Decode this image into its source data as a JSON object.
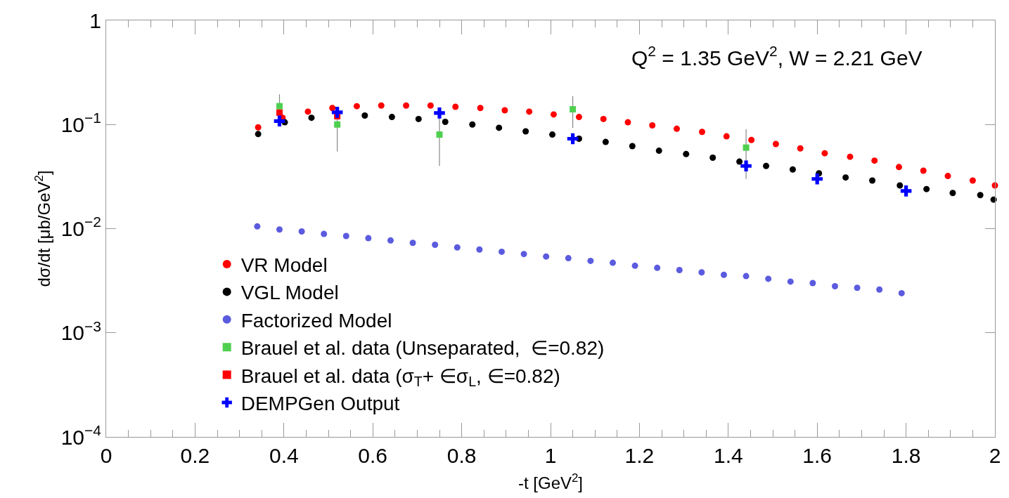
{
  "chart_data": {
    "type": "scatter",
    "xlabel": "-t [GeV$^{2}$]",
    "ylabel": "dσ/dt [μb/GeV$^{2}$]",
    "annotations": [
      "Q$^{2}$ = 1.35 GeV$^{2}$, W = 2.21 GeV"
    ],
    "log": "y",
    "legend": "bottom left",
    "xlim": [
      0,
      2
    ],
    "xticks": [
      0,
      0.2,
      0.4,
      0.6,
      0.8,
      1,
      1.2,
      1.4,
      1.6,
      1.8,
      2
    ],
    "ylim": [
      0.0001,
      1
    ],
    "yticks": [
      {
        "value": 0.0001,
        "label": "10$^{−4}$"
      },
      {
        "value": 0.001,
        "label": "10$^{−3}$"
      },
      {
        "value": 0.01,
        "label": "10$^{−2}$"
      },
      {
        "value": 0.1,
        "label": "10$^{−1}$"
      },
      1
    ],
    "series": [
      {
        "name": "VR Model",
        "color": "#ff0000",
        "marker": "circle",
        "x": [
          0.342,
          0.397,
          0.454,
          0.509,
          0.564,
          0.619,
          0.675,
          0.73,
          0.786,
          0.842,
          0.897,
          0.952,
          1.007,
          1.064,
          1.119,
          1.174,
          1.229,
          1.284,
          1.341,
          1.396,
          1.452,
          1.507,
          1.562,
          1.617,
          1.674,
          1.729,
          1.784,
          1.839,
          1.894,
          1.95,
          2.0
        ],
        "values": [
          0.094,
          0.116,
          0.133,
          0.144,
          0.15,
          0.152,
          0.152,
          0.152,
          0.148,
          0.144,
          0.137,
          0.133,
          0.125,
          0.118,
          0.113,
          0.105,
          0.098,
          0.091,
          0.085,
          0.077,
          0.071,
          0.065,
          0.059,
          0.053,
          0.049,
          0.045,
          0.039,
          0.036,
          0.032,
          0.029,
          0.026
        ]
      },
      {
        "name": "VGL Model",
        "color": "#000000",
        "marker": "circle",
        "x": [
          0.342,
          0.402,
          0.462,
          0.522,
          0.582,
          0.643,
          0.703,
          0.763,
          0.824,
          0.884,
          0.944,
          1.004,
          1.064,
          1.124,
          1.184,
          1.244,
          1.305,
          1.365,
          1.425,
          1.485,
          1.545,
          1.604,
          1.664,
          1.724,
          1.786,
          1.846,
          1.905,
          1.967,
          1.997
        ],
        "values": [
          0.081,
          0.105,
          0.116,
          null,
          0.122,
          0.118,
          0.113,
          0.106,
          0.1,
          0.093,
          0.086,
          0.08,
          0.073,
          0.068,
          0.062,
          0.056,
          0.052,
          0.048,
          0.044,
          0.04,
          0.037,
          0.034,
          0.031,
          0.029,
          0.026,
          0.024,
          0.022,
          0.021,
          0.019
        ]
      },
      {
        "name": "Factorized Model",
        "color": "#5b5bdf",
        "marker": "circle",
        "x": [
          0.34,
          0.39,
          0.44,
          0.49,
          0.54,
          0.59,
          0.64,
          0.69,
          0.74,
          0.79,
          0.84,
          0.89,
          0.94,
          0.99,
          1.04,
          1.09,
          1.14,
          1.19,
          1.24,
          1.29,
          1.34,
          1.39,
          1.44,
          1.49,
          1.54,
          1.59,
          1.64,
          1.69,
          1.74,
          1.79
        ],
        "values": [
          0.0105,
          0.0098,
          0.0094,
          0.0089,
          0.0085,
          0.0081,
          0.0077,
          0.0073,
          0.007,
          0.0066,
          0.0063,
          0.006,
          0.0057,
          0.0054,
          0.0052,
          0.0049,
          0.0047,
          0.0044,
          0.0042,
          0.004,
          0.0038,
          0.0036,
          0.0035,
          0.0033,
          0.0031,
          0.003,
          0.0028,
          0.0027,
          0.0026,
          0.0024
        ]
      },
      {
        "name": "Brauel et al. data (Unseparated,  ∈=0.82)",
        "color": "#4fcf4f",
        "marker": "square",
        "x": [
          0.39,
          0.52,
          0.75,
          1.05,
          1.44
        ],
        "values": [
          0.15,
          0.1,
          0.08,
          0.14,
          0.06
        ],
        "errors": [
          0.045,
          0.045,
          0.04,
          0.047,
          0.03
        ]
      },
      {
        "name": "Brauel et al. data (σ$_{T}$+ ∈σ$_{L}$, ∈=0.82)",
        "color": "#ff0000",
        "marker": "square",
        "x": [
          0.39,
          0.52
        ],
        "values": [
          0.13,
          0.12
        ]
      },
      {
        "name": "DEMPGen Output",
        "color": "#0000ff",
        "marker": "cross",
        "x": [
          0.39,
          0.52,
          0.75,
          1.05,
          1.44,
          1.6,
          1.8
        ],
        "values": [
          0.108,
          0.131,
          0.129,
          0.073,
          0.04,
          0.03,
          0.023
        ]
      }
    ]
  }
}
